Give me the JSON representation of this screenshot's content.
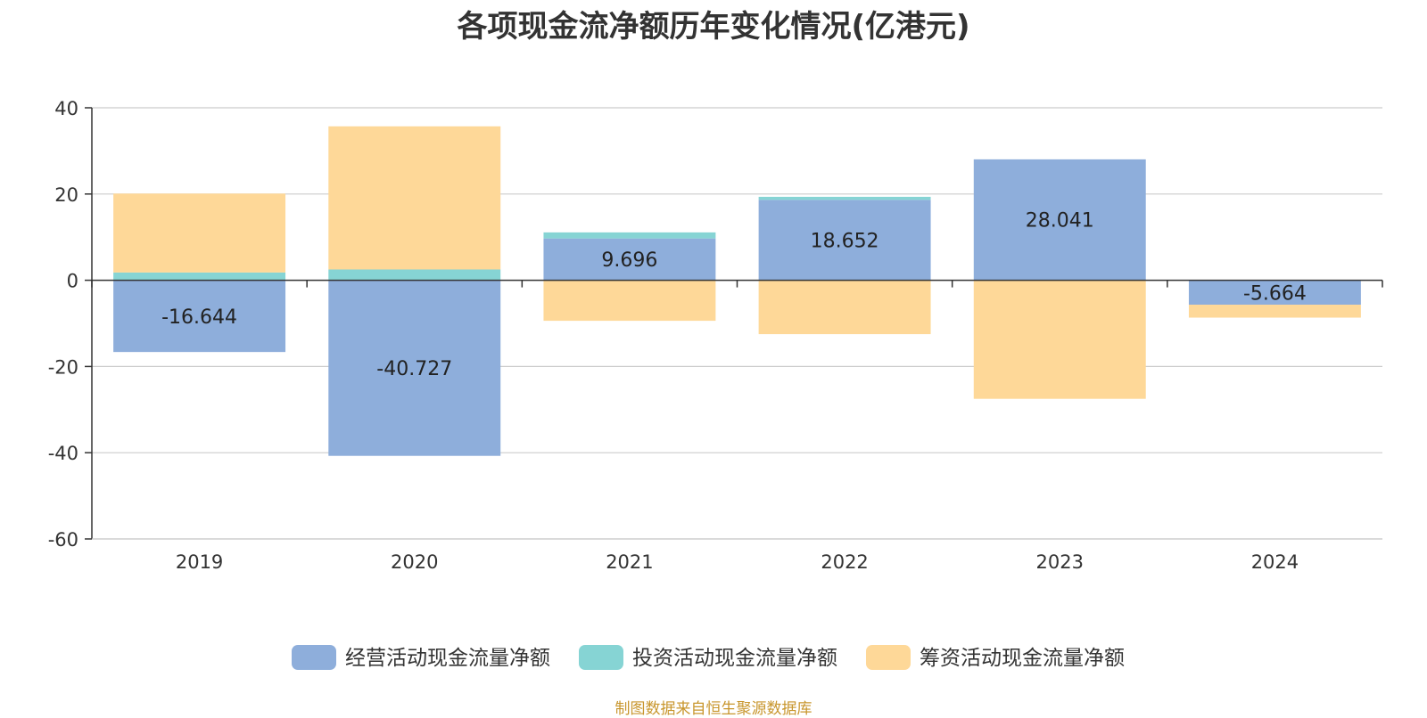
{
  "chart_data": {
    "type": "bar",
    "stacked": true,
    "title": "各项现金流净额历年变化情况(亿港元)",
    "xlabel": "",
    "ylabel": "",
    "categories": [
      "2019",
      "2020",
      "2021",
      "2022",
      "2023",
      "2024"
    ],
    "ylim": [
      -60,
      40
    ],
    "yticks": [
      40,
      20,
      0,
      -20,
      -40,
      -60
    ],
    "grid": true,
    "legend_position": "bottom",
    "series": [
      {
        "name": "经营活动现金流量净额",
        "color": "#8eaedb",
        "values": [
          -16.644,
          -40.727,
          9.696,
          18.652,
          28.041,
          -5.664
        ],
        "show_labels": true
      },
      {
        "name": "投资活动现金流量净额",
        "color": "#86d4d4",
        "values": [
          1.8,
          2.5,
          1.4,
          0.7,
          0,
          0
        ],
        "show_labels": false
      },
      {
        "name": "筹资活动现金流量净额",
        "color": "#fed898",
        "values": [
          18.3,
          33.2,
          -9.4,
          -12.5,
          -27.5,
          -3.0
        ],
        "show_labels": false
      }
    ]
  },
  "footer": {
    "source": "制图数据来自恒生聚源数据库"
  }
}
